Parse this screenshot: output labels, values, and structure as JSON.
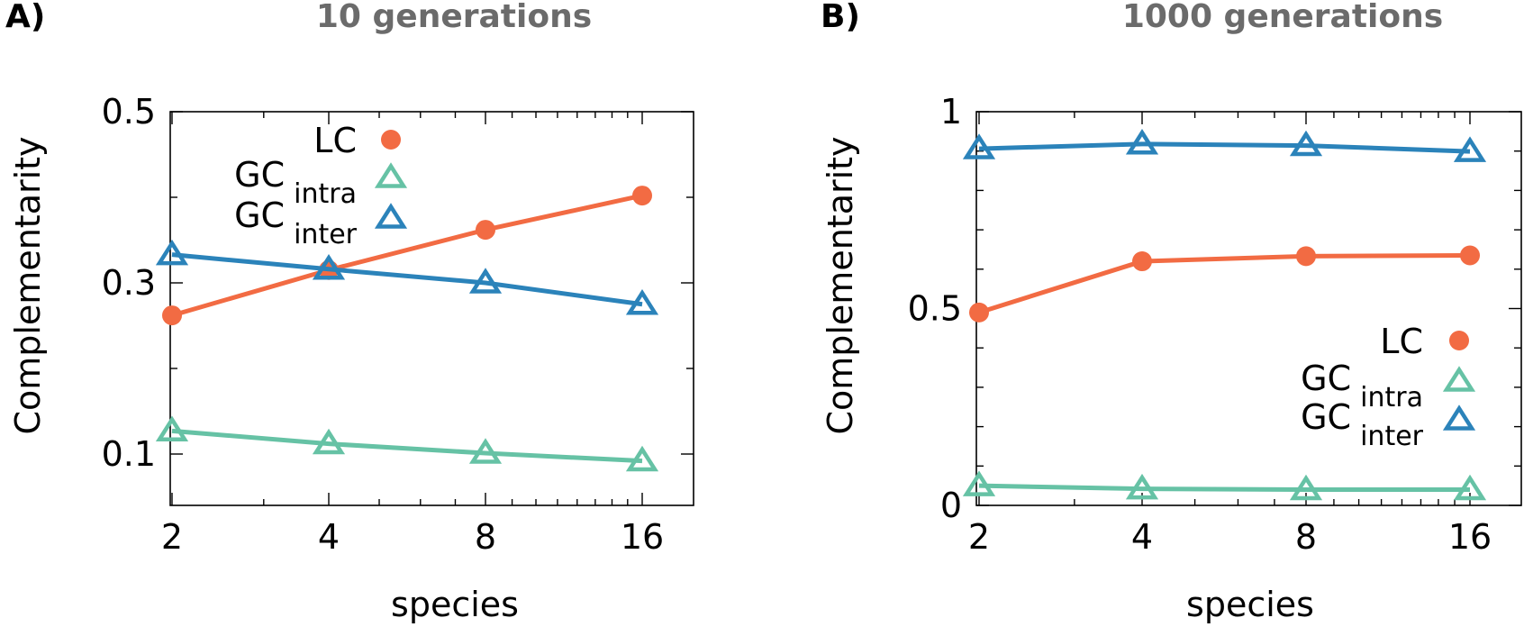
{
  "chart_data": [
    {
      "type": "line",
      "panel_label": "A)",
      "title": "10 generations",
      "xlabel": "species",
      "ylabel": "Complementarity",
      "categories": [
        "2",
        "4",
        "8",
        "16"
      ],
      "ylim": [
        0.04,
        0.5
      ],
      "yticks": [
        "0.5",
        "0.3",
        "0.1"
      ],
      "ytick_values": [
        0.5,
        0.3,
        0.1
      ],
      "legend_position": "top-center",
      "series": [
        {
          "name": "LC",
          "name_main": "LC",
          "name_sub": "",
          "color": "#f26b43",
          "marker": "circle",
          "values": [
            0.262,
            0.315,
            0.362,
            0.402
          ]
        },
        {
          "name": "GC intra",
          "name_main": "GC",
          "name_sub": "intra",
          "color": "#66c2a5",
          "marker": "triangle-open",
          "values": [
            0.127,
            0.112,
            0.101,
            0.092
          ]
        },
        {
          "name": "GC inter",
          "name_main": "GC",
          "name_sub": "inter",
          "color": "#2b83ba",
          "marker": "triangle-open",
          "values": [
            0.333,
            0.316,
            0.3,
            0.275
          ]
        }
      ]
    },
    {
      "type": "line",
      "panel_label": "B)",
      "title": "1000 generations",
      "xlabel": "species",
      "ylabel": "Complementarity",
      "categories": [
        "2",
        "4",
        "8",
        "16"
      ],
      "ylim": [
        0,
        1
      ],
      "yticks": [
        "1",
        "0.5",
        "0"
      ],
      "ytick_values": [
        1,
        0.5,
        0
      ],
      "legend_position": "bottom-right",
      "series": [
        {
          "name": "LC",
          "name_main": "LC",
          "name_sub": "",
          "color": "#f26b43",
          "marker": "circle",
          "values": [
            0.49,
            0.62,
            0.633,
            0.635
          ]
        },
        {
          "name": "GC intra",
          "name_main": "GC",
          "name_sub": "intra",
          "color": "#66c2a5",
          "marker": "triangle-open",
          "values": [
            0.05,
            0.042,
            0.04,
            0.04
          ]
        },
        {
          "name": "GC inter",
          "name_main": "GC",
          "name_sub": "inter",
          "color": "#2b83ba",
          "marker": "triangle-open",
          "values": [
            0.906,
            0.918,
            0.914,
            0.899
          ]
        }
      ]
    }
  ]
}
